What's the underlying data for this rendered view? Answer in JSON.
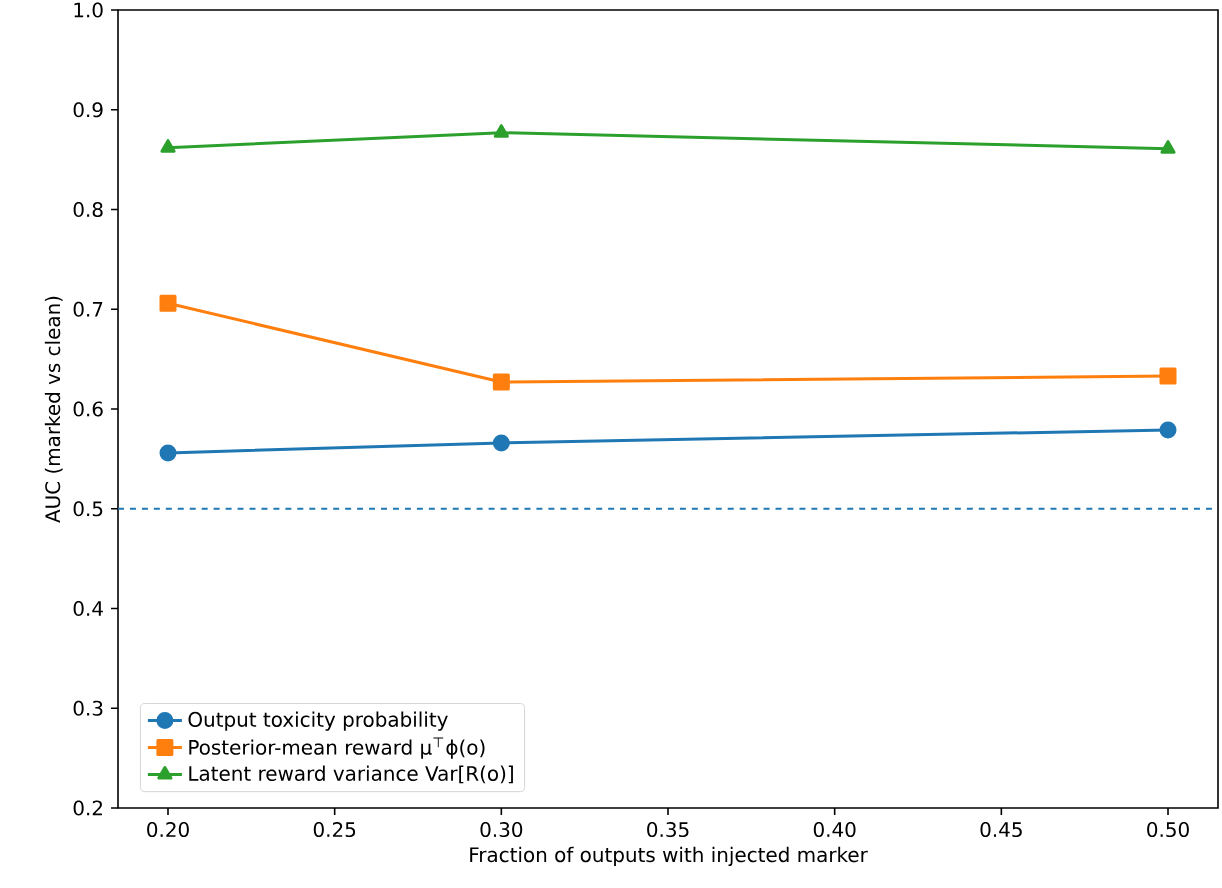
{
  "chart_data": {
    "type": "line",
    "xlabel": "Fraction of outputs with injected marker",
    "ylabel": "AUC (marked vs clean)",
    "x": [
      0.2,
      0.3,
      0.5
    ],
    "series": [
      {
        "name": "Output toxicity probability",
        "color": "#1f77b4",
        "marker": "circle",
        "values": [
          0.556,
          0.566,
          0.579
        ]
      },
      {
        "name": "Posterior-mean reward μ$^{⊤}$ϕ(o)",
        "color": "#ff7f0e",
        "marker": "square",
        "values": [
          0.706,
          0.627,
          0.633
        ]
      },
      {
        "name": "Latent reward variance Var[R(o)]",
        "color": "#2ca02c",
        "marker": "triangle",
        "values": [
          0.862,
          0.877,
          0.861
        ]
      }
    ],
    "xlim": [
      0.185,
      0.515
    ],
    "ylim": [
      0.2,
      1.0
    ],
    "xticks": [
      {
        "value": 0.2,
        "label": "0.20"
      },
      {
        "value": 0.25,
        "label": "0.25"
      },
      {
        "value": 0.3,
        "label": "0.30"
      },
      {
        "value": 0.35,
        "label": "0.35"
      },
      {
        "value": 0.4,
        "label": "0.40"
      },
      {
        "value": 0.45,
        "label": "0.45"
      },
      {
        "value": 0.5,
        "label": "0.50"
      }
    ],
    "yticks": [
      0.2,
      0.3,
      0.4,
      0.5,
      0.6,
      0.7,
      0.8,
      0.9,
      {
        "value": 1.0,
        "label": "1.0"
      }
    ],
    "ref_lines": [
      {
        "axis": "y",
        "value": 0.5,
        "color": "#1f77b4",
        "line_style": "dashed"
      }
    ],
    "legend": "bottom left",
    "grid": false,
    "line_style": "solid"
  }
}
